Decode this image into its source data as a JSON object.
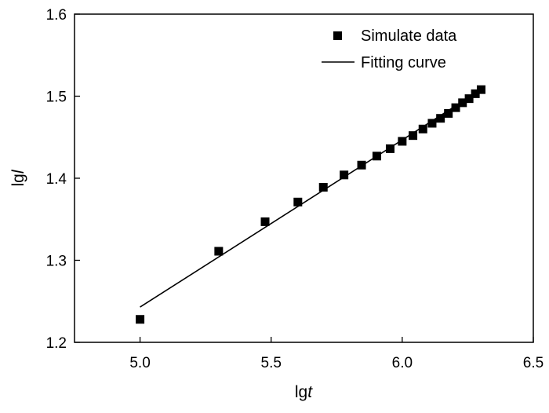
{
  "chart_data": {
    "type": "scatter",
    "xlabel": {
      "main": "lg",
      "italic": "t"
    },
    "ylabel": {
      "main": "lg",
      "italic": "l"
    },
    "xlim": [
      4.75,
      6.5
    ],
    "ylim": [
      1.2,
      1.6
    ],
    "xticks": [
      "5.0",
      "5.5",
      "6.0",
      "6.5"
    ],
    "yticks": [
      "1.2",
      "1.3",
      "1.4",
      "1.5",
      "1.6"
    ],
    "legend": {
      "position": "top-right"
    },
    "series": [
      {
        "name": "Simulate data",
        "kind": "scatter",
        "marker": "square",
        "color": "#000000",
        "points": [
          [
            5.0,
            1.228
          ],
          [
            5.3,
            1.311
          ],
          [
            5.477,
            1.347
          ],
          [
            5.602,
            1.371
          ],
          [
            5.699,
            1.389
          ],
          [
            5.778,
            1.404
          ],
          [
            5.845,
            1.416
          ],
          [
            5.903,
            1.427
          ],
          [
            5.954,
            1.436
          ],
          [
            6.0,
            1.445
          ],
          [
            6.041,
            1.452
          ],
          [
            6.079,
            1.46
          ],
          [
            6.114,
            1.467
          ],
          [
            6.146,
            1.473
          ],
          [
            6.176,
            1.479
          ],
          [
            6.204,
            1.486
          ],
          [
            6.23,
            1.492
          ],
          [
            6.255,
            1.497
          ],
          [
            6.279,
            1.503
          ],
          [
            6.301,
            1.508
          ]
        ]
      },
      {
        "name": "Fitting curve",
        "kind": "line",
        "color": "#000000",
        "points": [
          [
            5.0,
            1.243
          ],
          [
            6.301,
            1.508
          ]
        ]
      }
    ]
  }
}
